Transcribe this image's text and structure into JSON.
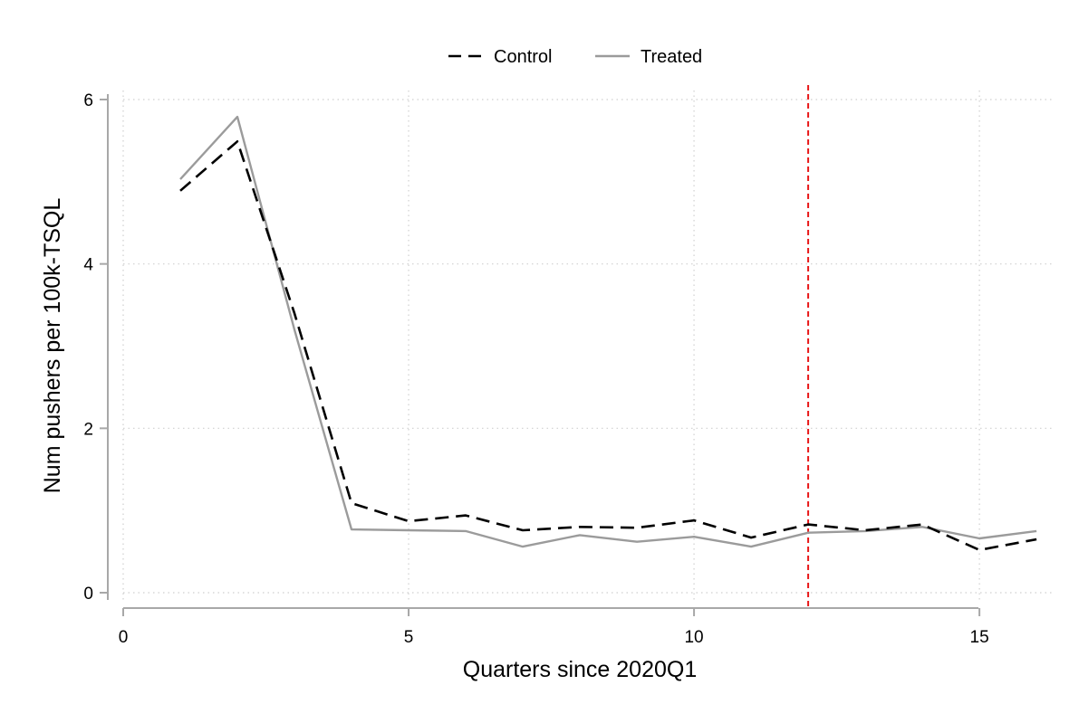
{
  "chart_data": {
    "type": "line",
    "xlabel": "Quarters since 2020Q1",
    "ylabel": "Num pushers per 100k-TSQL",
    "xlim": [
      0,
      16.3
    ],
    "ylim": [
      0,
      6
    ],
    "x_ticks": [
      0,
      5,
      10,
      15
    ],
    "y_ticks": [
      0,
      2,
      4,
      6
    ],
    "grid": true,
    "legend_position": "top-center",
    "reference_line": {
      "x": 12,
      "color": "#e8191a",
      "style": "dashed"
    },
    "series": [
      {
        "name": "Control",
        "style": "dashed",
        "color": "#000000",
        "x": [
          1,
          2,
          3,
          4,
          5,
          6,
          7,
          8,
          9,
          10,
          11,
          12,
          13,
          14,
          15,
          16
        ],
        "y": [
          4.89,
          5.49,
          3.4,
          1.09,
          0.87,
          0.94,
          0.76,
          0.8,
          0.79,
          0.88,
          0.67,
          0.83,
          0.76,
          0.83,
          0.52,
          0.65
        ]
      },
      {
        "name": "Treated",
        "style": "solid",
        "color": "#9b9b9b",
        "x": [
          1,
          2,
          3,
          4,
          5,
          6,
          7,
          8,
          9,
          10,
          11,
          12,
          13,
          14,
          15,
          16
        ],
        "y": [
          5.03,
          5.79,
          3.2,
          0.77,
          0.76,
          0.75,
          0.56,
          0.7,
          0.62,
          0.68,
          0.56,
          0.73,
          0.75,
          0.8,
          0.66,
          0.75
        ]
      }
    ]
  }
}
